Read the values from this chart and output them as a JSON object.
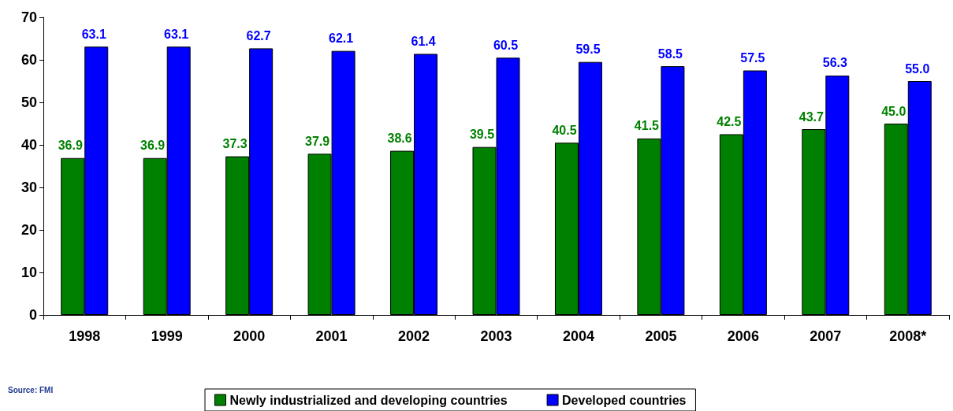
{
  "chart_data": {
    "type": "bar",
    "categories": [
      "1998",
      "1999",
      "2000",
      "2001",
      "2002",
      "2003",
      "2004",
      "2005",
      "2006",
      "2007",
      "2008*"
    ],
    "series": [
      {
        "name": "Newly industrialized and developing countries",
        "color": "#008000",
        "values": [
          36.9,
          36.9,
          37.3,
          37.9,
          38.6,
          39.5,
          40.5,
          41.5,
          42.5,
          43.7,
          45.0
        ],
        "value_labels": [
          "36.9",
          "36.9",
          "37.3",
          "37.9",
          "38.6",
          "39.5",
          "40.5",
          "41.5",
          "42.5",
          "43.7",
          "45.0"
        ]
      },
      {
        "name": "Developed countries",
        "color": "#0000ff",
        "values": [
          63.1,
          63.1,
          62.7,
          62.1,
          61.4,
          60.5,
          59.5,
          58.5,
          57.5,
          56.3,
          55.0
        ],
        "value_labels": [
          "63.1",
          "63.1",
          "62.7",
          "62.1",
          "61.4",
          "60.5",
          "59.5",
          "58.5",
          "57.5",
          "56.3",
          "55.0"
        ]
      }
    ],
    "ylim": [
      0,
      70
    ],
    "yticks": [
      0,
      10,
      20,
      30,
      40,
      50,
      60,
      70
    ],
    "grid": false,
    "legend": "bottom",
    "annotations": [
      "Source: FMI"
    ]
  }
}
